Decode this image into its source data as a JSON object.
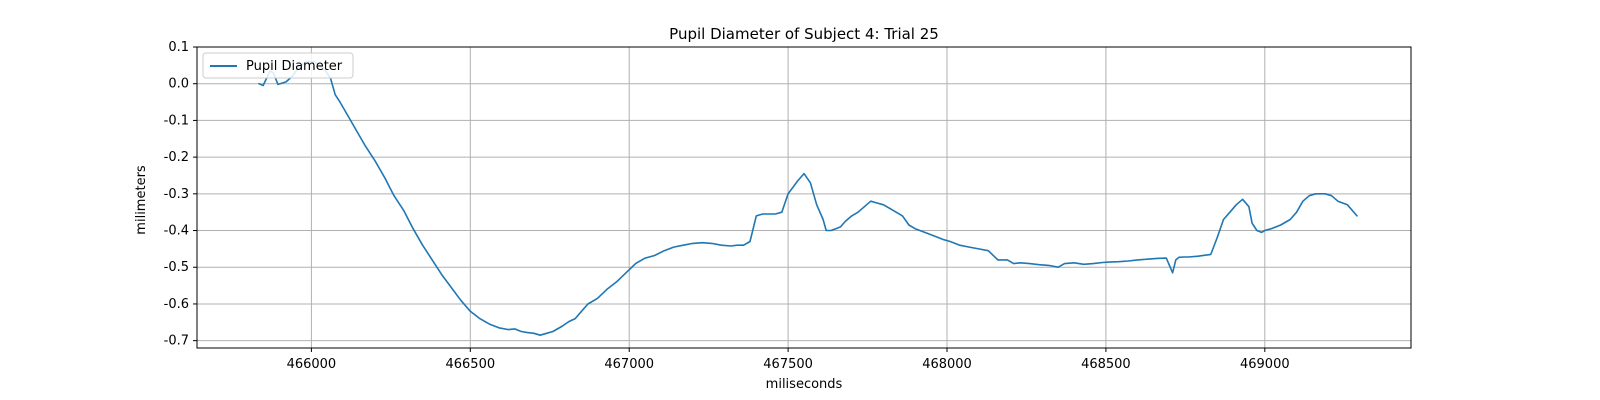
{
  "chart_data": {
    "type": "line",
    "title": "Pupil Diameter of Subject 4: Trial 25",
    "xlabel": "miliseconds",
    "ylabel": "milimeters",
    "xlim": [
      465640,
      469460
    ],
    "ylim": [
      -0.72,
      0.1
    ],
    "xticks": [
      466000,
      466500,
      467000,
      467500,
      468000,
      468500,
      469000
    ],
    "yticks": [
      0.1,
      0.0,
      -0.1,
      -0.2,
      -0.3,
      -0.4,
      -0.5,
      -0.6,
      -0.7
    ],
    "grid": true,
    "legend_position": "top-left",
    "series": [
      {
        "name": "Pupil Diameter",
        "color": "#1f77b4",
        "x": [
          465835,
          465848,
          465870,
          465880,
          465895,
          465920,
          465940,
          465960,
          465985,
          466010,
          466040,
          466060,
          466075,
          466090,
          466110,
          466140,
          466170,
          466200,
          466230,
          466260,
          466290,
          466320,
          466350,
          466380,
          466410,
          466440,
          466470,
          466500,
          466530,
          466560,
          466590,
          466620,
          466640,
          466660,
          466680,
          466700,
          466720,
          466740,
          466760,
          466790,
          466810,
          466830,
          466850,
          466870,
          466900,
          466930,
          466960,
          466990,
          467020,
          467050,
          467080,
          467110,
          467140,
          467170,
          467200,
          467230,
          467260,
          467290,
          467320,
          467340,
          467360,
          467380,
          467400,
          467420,
          467440,
          467460,
          467480,
          467500,
          467530,
          467550,
          467570,
          467590,
          467610,
          467620,
          467635,
          467650,
          467665,
          467680,
          467700,
          467720,
          467740,
          467760,
          467780,
          467800,
          467830,
          467860,
          467880,
          467900,
          467930,
          467960,
          467990,
          468010,
          468040,
          468070,
          468100,
          468130,
          468160,
          468190,
          468210,
          468230,
          468260,
          468290,
          468320,
          468350,
          468370,
          468400,
          468430,
          468460,
          468490,
          468510,
          468540,
          468570,
          468600,
          468630,
          468660,
          468690,
          468710,
          468720,
          468730,
          468745,
          468760,
          468790,
          468830,
          468850,
          468870,
          468890,
          468910,
          468930,
          468950,
          468960,
          468975,
          468990,
          469000,
          469020,
          469050,
          469080,
          469100,
          469120,
          469140,
          469160,
          469190,
          469210,
          469230,
          469260,
          469290
        ],
        "y": [
          0.0,
          -0.005,
          0.035,
          0.03,
          -0.002,
          0.005,
          0.02,
          0.045,
          0.06,
          0.06,
          0.04,
          0.015,
          -0.03,
          -0.05,
          -0.08,
          -0.125,
          -0.17,
          -0.21,
          -0.255,
          -0.305,
          -0.345,
          -0.395,
          -0.44,
          -0.48,
          -0.52,
          -0.555,
          -0.59,
          -0.62,
          -0.64,
          -0.655,
          -0.665,
          -0.67,
          -0.668,
          -0.675,
          -0.678,
          -0.68,
          -0.685,
          -0.68,
          -0.675,
          -0.66,
          -0.648,
          -0.64,
          -0.62,
          -0.6,
          -0.585,
          -0.56,
          -0.54,
          -0.515,
          -0.49,
          -0.475,
          -0.468,
          -0.455,
          -0.445,
          -0.44,
          -0.435,
          -0.433,
          -0.435,
          -0.44,
          -0.442,
          -0.44,
          -0.44,
          -0.43,
          -0.36,
          -0.355,
          -0.355,
          -0.355,
          -0.35,
          -0.3,
          -0.265,
          -0.245,
          -0.27,
          -0.33,
          -0.37,
          -0.4,
          -0.4,
          -0.395,
          -0.39,
          -0.375,
          -0.36,
          -0.35,
          -0.335,
          -0.32,
          -0.325,
          -0.33,
          -0.345,
          -0.36,
          -0.385,
          -0.395,
          -0.405,
          -0.415,
          -0.425,
          -0.43,
          -0.44,
          -0.445,
          -0.45,
          -0.455,
          -0.48,
          -0.48,
          -0.49,
          -0.488,
          -0.49,
          -0.493,
          -0.495,
          -0.5,
          -0.49,
          -0.488,
          -0.492,
          -0.49,
          -0.487,
          -0.486,
          -0.485,
          -0.483,
          -0.48,
          -0.478,
          -0.476,
          -0.475,
          -0.515,
          -0.48,
          -0.473,
          -0.472,
          -0.472,
          -0.47,
          -0.465,
          -0.42,
          -0.37,
          -0.35,
          -0.33,
          -0.315,
          -0.335,
          -0.38,
          -0.4,
          -0.405,
          -0.4,
          -0.395,
          -0.385,
          -0.37,
          -0.35,
          -0.32,
          -0.305,
          -0.3,
          -0.3,
          -0.305,
          -0.32,
          -0.33,
          -0.36
        ]
      }
    ]
  }
}
